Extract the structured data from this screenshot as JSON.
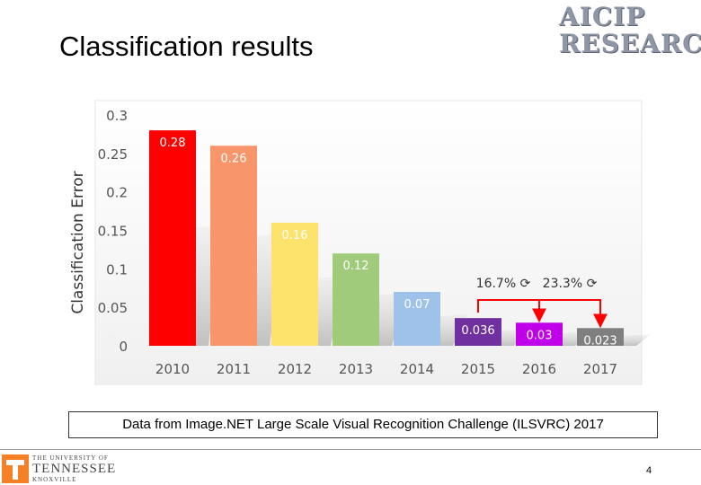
{
  "slide": {
    "title": "Classification results",
    "logo_line1": "AICIP",
    "logo_line2": "RESEARCH",
    "caption": "Data from Image.NET Large Scale Visual Recognition Challenge (ILSVRC) 2017",
    "university_line1": "THE UNIVERSITY OF",
    "university_line2": "TENNESSEE",
    "university_line3": "KNOXVILLE",
    "page_number": "4"
  },
  "chart_data": {
    "type": "bar",
    "title": "",
    "xlabel": "",
    "ylabel": "Classification Error",
    "ylim": [
      0,
      0.3
    ],
    "yticks": [
      "0",
      "0.05",
      "0.1",
      "0.15",
      "0.2",
      "0.25",
      "0.3"
    ],
    "categories": [
      "2010",
      "2011",
      "2012",
      "2013",
      "2014",
      "2015",
      "2016",
      "2017"
    ],
    "values": [
      0.28,
      0.26,
      0.16,
      0.12,
      0.07,
      0.036,
      0.03,
      0.023
    ],
    "labels": [
      "0.28",
      "0.26",
      "0.16",
      "0.12",
      "0.07",
      "0.036",
      "0.03",
      "0.023"
    ],
    "colors": [
      "#ff0000",
      "#f8956a",
      "#fde26c",
      "#9fcb7b",
      "#9fc2ea",
      "#7030a0",
      "#c000e8",
      "#7f7f7f"
    ],
    "label_colors": [
      "#ffffff",
      "#ffffff",
      "#ffffff",
      "#ffffff",
      "#ffffff",
      "#ffffff",
      "#ffffff",
      "#ffffff"
    ],
    "grid": false,
    "annotations": [
      {
        "text": "16.7% ⟳",
        "from": "2015",
        "to": "2016"
      },
      {
        "text": "23.3% ⟳",
        "from": "2016",
        "to": "2017"
      }
    ],
    "annotation_color": "#ff0000"
  }
}
